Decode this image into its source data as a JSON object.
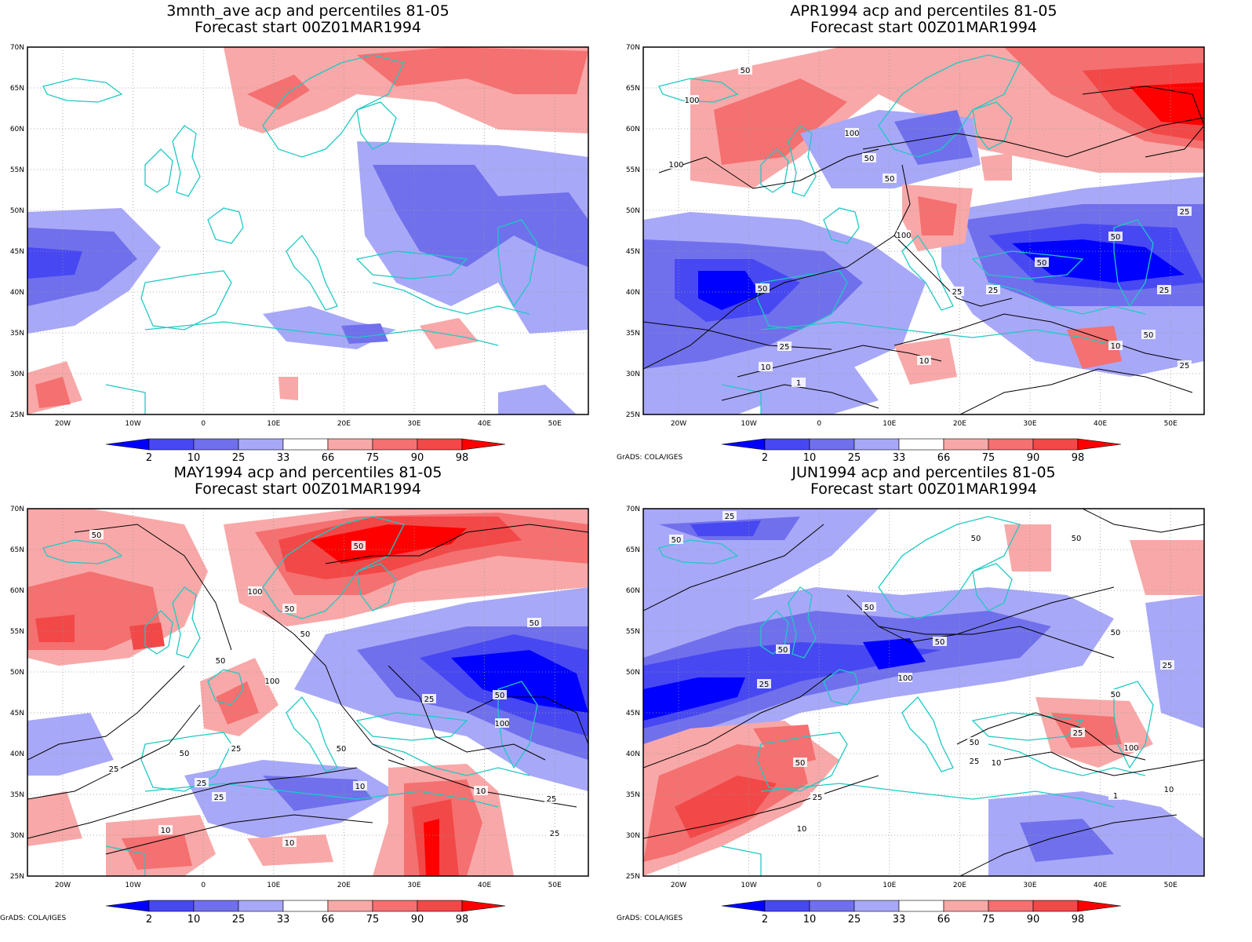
{
  "panels": [
    {
      "id": "p1",
      "title_line1": "3mnth_ave acp and percentiles 81-05",
      "title_line2": "Forecast start 00Z01MAR1994",
      "credit": "",
      "contour_labels": []
    },
    {
      "id": "p2",
      "title_line1": "APR1994 acp and percentiles 81-05",
      "title_line2": "Forecast start 00Z01MAR1994",
      "credit": "GrADS: COLA/IGES",
      "contour_labels": [
        "50",
        "100",
        "100",
        "100",
        "50",
        "50",
        "25",
        "50",
        "100",
        "50",
        "25",
        "50",
        "25",
        "25",
        "25",
        "10",
        "10",
        "1",
        "50",
        "10",
        "25"
      ]
    },
    {
      "id": "p3",
      "title_line1": "MAY1994 acp and percentiles 81-05",
      "title_line2": "Forecast start 00Z01MAR1994",
      "credit": "GrADS: COLA/IGES",
      "contour_labels": [
        "50",
        "50",
        "100",
        "50",
        "50",
        "50",
        "100",
        "50",
        "25",
        "50",
        "100",
        "25",
        "50",
        "50",
        "25",
        "25",
        "25",
        "10",
        "10",
        "25",
        "10",
        "10",
        "25"
      ]
    },
    {
      "id": "p4",
      "title_line1": "JUN1994 acp and percentiles 81-05",
      "title_line2": "Forecast start 00Z01MAR1994",
      "credit": "GrADS: COLA/IGES",
      "contour_labels": [
        "25",
        "50",
        "50",
        "50",
        "50",
        "50",
        "50",
        "50",
        "25",
        "25",
        "100",
        "50",
        "50",
        "25",
        "100",
        "50",
        "25",
        "10",
        "25",
        "10",
        "1",
        "10"
      ]
    }
  ],
  "axes": {
    "lat_labels": [
      "70N",
      "65N",
      "60N",
      "55N",
      "50N",
      "45N",
      "40N",
      "35N",
      "30N",
      "25N"
    ],
    "lon_labels": [
      "20W",
      "10W",
      "0",
      "10E",
      "20E",
      "30E",
      "40E",
      "50E"
    ]
  },
  "colorbar": {
    "labels": [
      "2",
      "10",
      "25",
      "33",
      "66",
      "75",
      "90",
      "98"
    ],
    "colors": [
      "#0000ff",
      "#4848f2",
      "#7070ec",
      "#a8a8f8",
      "#ffffff",
      "#f8a8a8",
      "#f57070",
      "#f24848",
      "#ff0000"
    ]
  },
  "colors": {
    "coastline": "#1fc9c4",
    "contour": "#000000",
    "frame": "#000000"
  }
}
